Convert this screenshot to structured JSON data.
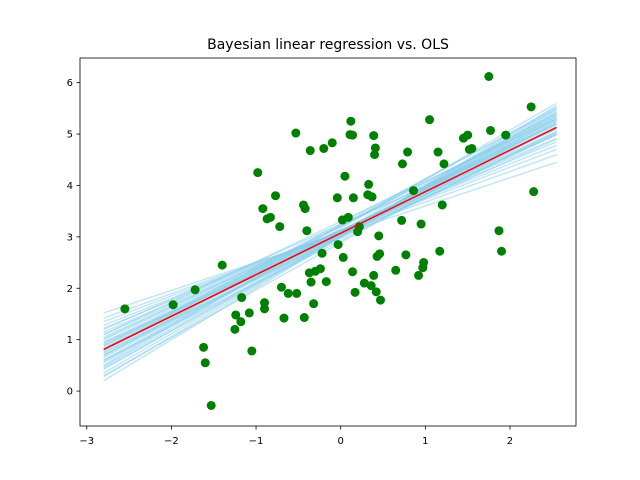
{
  "chart_data": {
    "type": "scatter",
    "title": "Bayesian linear regression vs. OLS",
    "xlabel": "",
    "ylabel": "",
    "xlim": [
      -3.08,
      2.78
    ],
    "ylim": [
      -0.68,
      6.48
    ],
    "xticks": [
      -3,
      -2,
      -1,
      0,
      1,
      2
    ],
    "xtick_labels": [
      "−3",
      "−2",
      "−1",
      "0",
      "1",
      "2"
    ],
    "yticks": [
      0,
      1,
      2,
      3,
      4,
      5,
      6
    ],
    "ytick_labels": [
      "0",
      "1",
      "2",
      "3",
      "4",
      "5",
      "6"
    ],
    "grid": false,
    "legend": false,
    "colors": {
      "points": "#008000",
      "posterior_lines": "#87ceeb",
      "ols_line": "#ff0000"
    },
    "series": [
      {
        "type": "scatter",
        "values": [
          [
            -2.55,
            1.6
          ],
          [
            -1.98,
            1.68
          ],
          [
            -1.72,
            1.97
          ],
          [
            -1.62,
            0.85
          ],
          [
            -1.6,
            0.55
          ],
          [
            -1.53,
            -0.28
          ],
          [
            -1.4,
            2.45
          ],
          [
            -1.25,
            1.2
          ],
          [
            -1.24,
            1.48
          ],
          [
            -1.18,
            1.35
          ],
          [
            -1.17,
            1.82
          ],
          [
            -1.08,
            1.52
          ],
          [
            -1.05,
            0.78
          ],
          [
            -0.98,
            4.25
          ],
          [
            -0.92,
            3.55
          ],
          [
            -0.9,
            1.72
          ],
          [
            -0.9,
            1.6
          ],
          [
            -0.87,
            3.35
          ],
          [
            -0.83,
            3.38
          ],
          [
            -0.77,
            3.8
          ],
          [
            -0.72,
            3.2
          ],
          [
            -0.7,
            2.02
          ],
          [
            -0.67,
            1.42
          ],
          [
            -0.62,
            1.9
          ],
          [
            -0.53,
            5.02
          ],
          [
            -0.52,
            1.9
          ],
          [
            -0.44,
            3.62
          ],
          [
            -0.43,
            1.43
          ],
          [
            -0.42,
            3.55
          ],
          [
            -0.4,
            3.12
          ],
          [
            -0.37,
            2.3
          ],
          [
            -0.36,
            4.68
          ],
          [
            -0.35,
            2.12
          ],
          [
            -0.32,
            1.7
          ],
          [
            -0.3,
            2.33
          ],
          [
            -0.24,
            2.38
          ],
          [
            -0.22,
            2.68
          ],
          [
            -0.2,
            4.72
          ],
          [
            -0.17,
            2.13
          ],
          [
            -0.1,
            4.83
          ],
          [
            -0.04,
            3.76
          ],
          [
            -0.03,
            2.85
          ],
          [
            0.02,
            3.33
          ],
          [
            0.03,
            2.6
          ],
          [
            0.05,
            4.18
          ],
          [
            0.09,
            3.38
          ],
          [
            0.11,
            4.99
          ],
          [
            0.12,
            5.25
          ],
          [
            0.14,
            4.98
          ],
          [
            0.14,
            2.32
          ],
          [
            0.15,
            3.76
          ],
          [
            0.17,
            1.92
          ],
          [
            0.2,
            3.1
          ],
          [
            0.22,
            3.2
          ],
          [
            0.28,
            2.1
          ],
          [
            0.32,
            3.82
          ],
          [
            0.33,
            4.02
          ],
          [
            0.36,
            2.05
          ],
          [
            0.37,
            3.78
          ],
          [
            0.39,
            2.25
          ],
          [
            0.39,
            4.97
          ],
          [
            0.4,
            4.6
          ],
          [
            0.41,
            4.73
          ],
          [
            0.42,
            1.93
          ],
          [
            0.43,
            2.62
          ],
          [
            0.45,
            3.02
          ],
          [
            0.46,
            2.67
          ],
          [
            0.47,
            1.77
          ],
          [
            0.65,
            2.35
          ],
          [
            0.72,
            3.32
          ],
          [
            0.73,
            4.42
          ],
          [
            0.77,
            2.65
          ],
          [
            0.79,
            4.65
          ],
          [
            0.86,
            3.9
          ],
          [
            0.92,
            2.25
          ],
          [
            0.95,
            3.25
          ],
          [
            0.97,
            2.4
          ],
          [
            0.98,
            2.5
          ],
          [
            1.05,
            5.28
          ],
          [
            1.15,
            4.65
          ],
          [
            1.17,
            2.72
          ],
          [
            1.2,
            3.62
          ],
          [
            1.22,
            4.42
          ],
          [
            1.45,
            4.92
          ],
          [
            1.5,
            4.98
          ],
          [
            1.52,
            4.7
          ],
          [
            1.55,
            4.72
          ],
          [
            1.75,
            6.12
          ],
          [
            1.77,
            5.07
          ],
          [
            1.87,
            3.12
          ],
          [
            1.9,
            2.72
          ],
          [
            1.95,
            4.98
          ],
          [
            2.25,
            5.53
          ],
          [
            2.28,
            3.88
          ]
        ]
      },
      {
        "type": "line",
        "name_hidden": true,
        "role": "posterior_samples",
        "x": [
          -2.8,
          2.55
        ],
        "lines": [
          [
            1.52,
            4.45
          ],
          [
            1.42,
            4.6
          ],
          [
            1.35,
            4.7
          ],
          [
            1.28,
            4.78
          ],
          [
            1.22,
            4.85
          ],
          [
            1.15,
            4.92
          ],
          [
            1.1,
            4.98
          ],
          [
            1.05,
            5.02
          ],
          [
            1.0,
            5.05
          ],
          [
            0.95,
            5.1
          ],
          [
            0.9,
            5.14
          ],
          [
            0.86,
            5.18
          ],
          [
            0.82,
            5.2
          ],
          [
            0.78,
            5.22
          ],
          [
            0.74,
            5.25
          ],
          [
            0.7,
            5.28
          ],
          [
            0.65,
            5.3
          ],
          [
            0.6,
            5.33
          ],
          [
            0.55,
            5.36
          ],
          [
            0.48,
            5.38
          ],
          [
            0.42,
            5.42
          ],
          [
            0.35,
            5.46
          ],
          [
            0.28,
            5.5
          ],
          [
            0.2,
            5.55
          ],
          [
            0.68,
            5.52
          ],
          [
            0.8,
            5.4
          ],
          [
            0.95,
            4.9
          ],
          [
            0.6,
            5.05
          ],
          [
            1.1,
            5.3
          ],
          [
            0.5,
            5.6
          ],
          [
            0.75,
            5.0
          ],
          [
            0.88,
            5.35
          ],
          [
            1.2,
            5.1
          ],
          [
            0.3,
            5.25
          ],
          [
            0.58,
            5.42
          ],
          [
            0.92,
            5.0
          ],
          [
            1.02,
            5.2
          ],
          [
            0.7,
            5.12
          ],
          [
            0.45,
            5.3
          ],
          [
            0.82,
            5.48
          ]
        ]
      },
      {
        "type": "line",
        "role": "ols_fit",
        "x": [
          -2.8,
          2.55
        ],
        "y": [
          0.81,
          5.13
        ]
      }
    ]
  }
}
